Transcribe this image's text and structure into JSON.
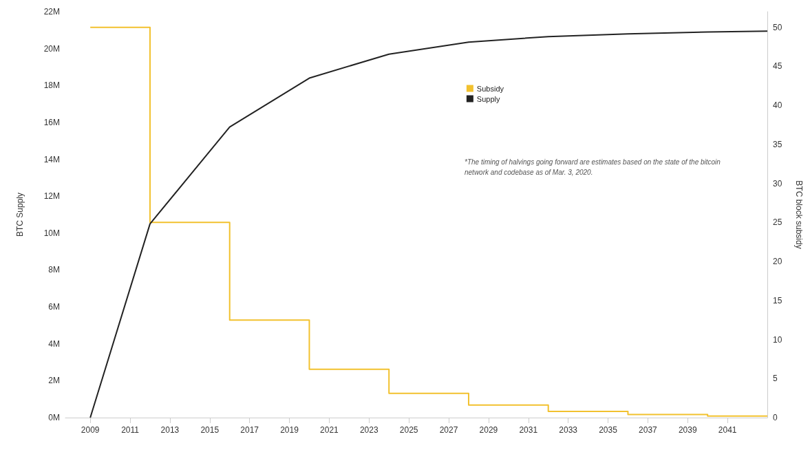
{
  "chart_data": {
    "type": "line",
    "xlabel": null,
    "ylabel": "BTC Supply",
    "y2label": "BTC block subsidy",
    "x": [
      2009,
      2012,
      2016,
      2020,
      2024,
      2028,
      2032,
      2036,
      2040,
      2043
    ],
    "series": [
      {
        "name": "Subsidy",
        "type": "step",
        "axis": "y2",
        "color": "#f2c12e",
        "values": [
          50,
          25,
          12.5,
          6.2,
          3.1,
          1.6,
          0.8,
          0.4,
          0.2,
          0.2
        ]
      },
      {
        "name": "Supply",
        "color": "#222222",
        "values": [
          0,
          10.5,
          15.75,
          18.4,
          19.7,
          20.35,
          20.65,
          20.8,
          20.9,
          20.95
        ]
      }
    ],
    "xlim": [
      2007.75,
      2043
    ],
    "xticks": [
      2009,
      2011,
      2013,
      2015,
      2017,
      2019,
      2021,
      2023,
      2025,
      2027,
      2029,
      2031,
      2033,
      2035,
      2037,
      2039,
      2041
    ],
    "ylim": [
      0,
      22
    ],
    "yticks": [
      {
        "value": 0,
        "label": "0M"
      },
      {
        "value": 2,
        "label": "2M"
      },
      {
        "value": 4,
        "label": "4M"
      },
      {
        "value": 6,
        "label": "6M"
      },
      {
        "value": 8,
        "label": "8M"
      },
      {
        "value": 10,
        "label": "10M"
      },
      {
        "value": 12,
        "label": "12M"
      },
      {
        "value": 14,
        "label": "14M"
      },
      {
        "value": 16,
        "label": "16M"
      },
      {
        "value": 18,
        "label": "18M"
      },
      {
        "value": 20,
        "label": "20M"
      },
      {
        "value": 22,
        "label": "22M"
      }
    ],
    "y2lim": [
      0,
      52
    ],
    "y2ticks": [
      0,
      5,
      10,
      15,
      20,
      25,
      30,
      35,
      40,
      45,
      50
    ],
    "legend": "top right",
    "marker": "none",
    "annotations": [
      "*The timing of halvings going forward are estimates based on the state of the bitcoin network and codebase as of Mar. 3, 2020."
    ]
  }
}
